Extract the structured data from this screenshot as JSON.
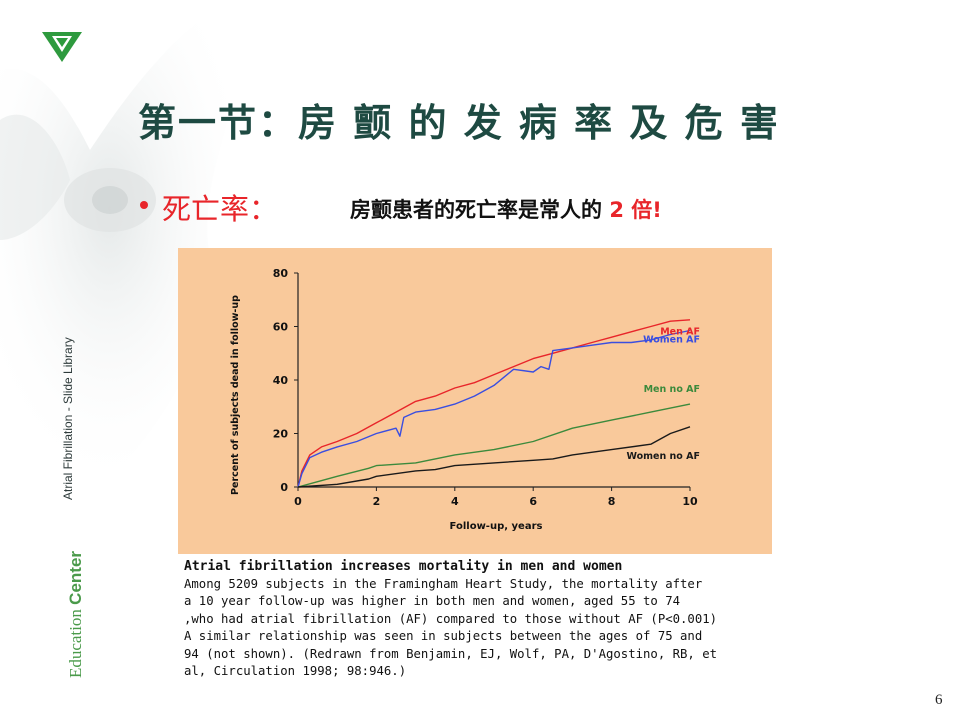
{
  "slide": {
    "title": "第一节：房 颤 的 发 病 率 及 危 害",
    "bullet_label": "死亡率：",
    "bullet_text_pre": "房颤患者的死亡率是常人的 ",
    "bullet_text_em": "2 倍!",
    "side_library": "Atrial Fibrillation - Slide Library",
    "side_edu_a": "Education ",
    "side_edu_b": "Center",
    "page_number": "6"
  },
  "caption": {
    "title": "Atrial fibrillation increases mortality in men and women",
    "lines": [
      "Among 5209 subjects in the Framingham Heart Study, the mortality after",
      "a 10 year follow-up was higher in both men and women, aged 55 to 74",
      ",who had atrial fibrillation (AF) compared to those without AF (P<0.001)",
      "A similar relationship was seen in subjects between the ages of 75 and",
      "94 (not shown). (Redrawn from Benjamin, EJ, Wolf, PA, D'Agostino, RB, et",
      "al, Circulation 1998; 98:946.)"
    ]
  },
  "colors": {
    "title": "#1e4a42",
    "accent": "#e8252a",
    "chart_bg": "#f9c99b"
  },
  "chart_data": {
    "type": "line",
    "xlabel": "Follow-up, years",
    "ylabel": "Percent of subjects dead in follow-up",
    "xlim": [
      0,
      10
    ],
    "ylim": [
      0,
      80
    ],
    "xticks": [
      "0",
      "2",
      "4",
      "6",
      "8",
      "10"
    ],
    "yticks": [
      "0",
      "20",
      "40",
      "60",
      "80"
    ],
    "grid": false,
    "legend": "inline labels at right end of lines",
    "series": [
      {
        "name": "Men AF",
        "color": "#e8252a",
        "x": [
          0,
          0.1,
          0.3,
          0.6,
          1,
          1.5,
          2,
          2.5,
          3,
          3.5,
          4,
          4.5,
          5,
          5.5,
          6,
          6.5,
          7,
          7.5,
          8,
          8.5,
          9,
          9.5,
          10
        ],
        "y": [
          0,
          6,
          12,
          15,
          17,
          20,
          24,
          28,
          32,
          34,
          37,
          39,
          42,
          45,
          48,
          50,
          52,
          54,
          56,
          58,
          60,
          62,
          62.5
        ]
      },
      {
        "name": "Women AF",
        "color": "#3a4ee0",
        "x": [
          0,
          0.1,
          0.3,
          0.6,
          1,
          1.5,
          2,
          2.5,
          2.6,
          2.7,
          3,
          3.5,
          4,
          4.5,
          5,
          5.5,
          6,
          6.2,
          6.4,
          6.5,
          7,
          7.5,
          8,
          8.5,
          9,
          9.5,
          10
        ],
        "y": [
          0,
          5,
          11,
          13,
          15,
          17,
          20,
          22,
          19,
          26,
          28,
          29,
          31,
          34,
          38,
          44,
          43,
          45,
          44,
          51,
          52,
          53,
          54,
          54,
          55,
          57,
          58.5
        ]
      },
      {
        "name": "Men no AF",
        "color": "#3c8a3c",
        "x": [
          0,
          0.5,
          1,
          1.8,
          2,
          3,
          4,
          5,
          6,
          7,
          8,
          9,
          10
        ],
        "y": [
          0,
          2,
          4,
          7,
          8,
          9,
          12,
          14,
          17,
          22,
          25,
          28,
          31
        ]
      },
      {
        "name": "Women no AF",
        "color": "#1a1a1a",
        "x": [
          0,
          1,
          1.8,
          2,
          3,
          3.5,
          4,
          5,
          6,
          6.5,
          7,
          8,
          9,
          9.5,
          10
        ],
        "y": [
          0,
          1,
          3,
          4,
          6,
          6.5,
          8,
          9,
          10,
          10.5,
          12,
          14,
          16,
          20,
          22.5
        ]
      }
    ]
  }
}
